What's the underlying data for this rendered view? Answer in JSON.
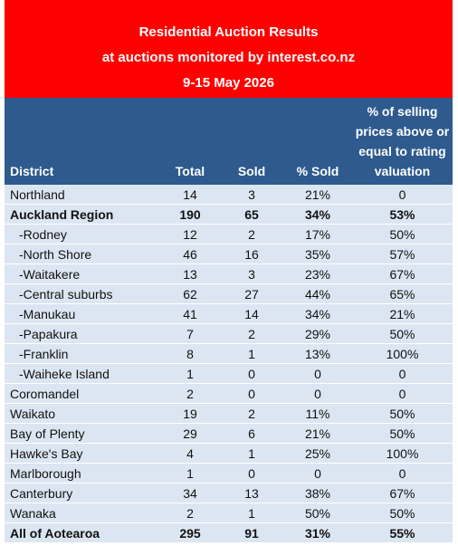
{
  "header": {
    "title": [
      "Residential Auction Results",
      "at auctions monitored by interest.co.nz",
      "9-15 May 2026"
    ]
  },
  "table": {
    "columns": [
      "District",
      "Total",
      "Sold",
      "% Sold",
      "% of selling prices above or equal to rating valuation"
    ],
    "rows": [
      [
        "Northland",
        "14",
        "3",
        "21%",
        "0"
      ],
      [
        "Auckland Region",
        "190",
        "65",
        "34%",
        "53%"
      ],
      [
        "-Rodney",
        "12",
        "2",
        "17%",
        "50%"
      ],
      [
        "-North Shore",
        "46",
        "16",
        "35%",
        "57%"
      ],
      [
        "-Waitakere",
        "13",
        "3",
        "23%",
        "67%"
      ],
      [
        "-Central suburbs",
        "62",
        "27",
        "44%",
        "65%"
      ],
      [
        "-Manukau",
        "41",
        "14",
        "34%",
        "21%"
      ],
      [
        "-Papakura",
        "7",
        "2",
        "29%",
        "50%"
      ],
      [
        "-Franklin",
        "8",
        "1",
        "13%",
        "100%"
      ],
      [
        "-Waiheke Island",
        "1",
        "0",
        "0",
        "0"
      ],
      [
        "Coromandel",
        "2",
        "0",
        "0",
        "0"
      ],
      [
        "Waikato",
        "19",
        "2",
        "11%",
        "50%"
      ],
      [
        "Bay of Plenty",
        "29",
        "6",
        "21%",
        "50%"
      ],
      [
        "Hawke's Bay",
        "4",
        "1",
        "25%",
        "100%"
      ],
      [
        "Marlborough",
        "1",
        "0",
        "0",
        "0"
      ],
      [
        "Canterbury",
        "34",
        "13",
        "38%",
        "67%"
      ],
      [
        "Wanaka",
        "2",
        "1",
        "50%",
        "50%"
      ],
      [
        "All of Aotearoa",
        "295",
        "91",
        "31%",
        "55%"
      ]
    ]
  }
}
